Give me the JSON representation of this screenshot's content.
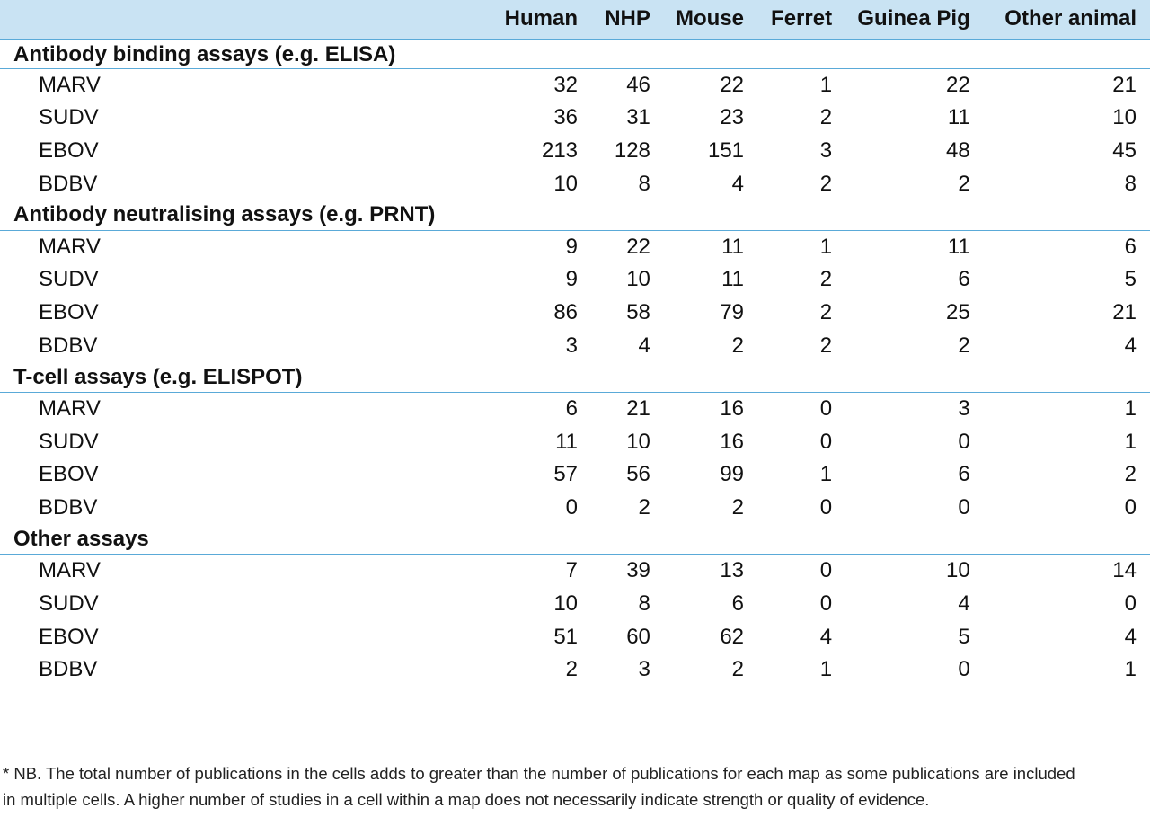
{
  "table": {
    "columns": [
      "",
      "Human",
      "NHP",
      "Mouse",
      "Ferret",
      "Guinea Pig",
      "Other animal"
    ],
    "groups": [
      {
        "title": "Antibody binding assays (e.g. ELISA)",
        "rows": [
          {
            "label": "MARV",
            "values": [
              "32",
              "46",
              "22",
              "1",
              "22",
              "21"
            ]
          },
          {
            "label": "SUDV",
            "values": [
              "36",
              "31",
              "23",
              "2",
              "11",
              "10"
            ]
          },
          {
            "label": "EBOV",
            "values": [
              "213",
              "128",
              "151",
              "3",
              "48",
              "45"
            ]
          },
          {
            "label": "BDBV",
            "values": [
              "10",
              "8",
              "4",
              "2",
              "2",
              "8"
            ]
          }
        ]
      },
      {
        "title": "Antibody neutralising assays (e.g. PRNT)",
        "rows": [
          {
            "label": "MARV",
            "values": [
              "9",
              "22",
              "11",
              "1",
              "11",
              "6"
            ]
          },
          {
            "label": "SUDV",
            "values": [
              "9",
              "10",
              "11",
              "2",
              "6",
              "5"
            ]
          },
          {
            "label": "EBOV",
            "values": [
              "86",
              "58",
              "79",
              "2",
              "25",
              "21"
            ]
          },
          {
            "label": "BDBV",
            "values": [
              "3",
              "4",
              "2",
              "2",
              "2",
              "4"
            ]
          }
        ]
      },
      {
        "title": "T-cell assays (e.g. ELISPOT)",
        "rows": [
          {
            "label": "MARV",
            "values": [
              "6",
              "21",
              "16",
              "0",
              "3",
              "1"
            ]
          },
          {
            "label": "SUDV",
            "values": [
              "11",
              "10",
              "16",
              "0",
              "0",
              "1"
            ]
          },
          {
            "label": "EBOV",
            "values": [
              "57",
              "56",
              "99",
              "1",
              "6",
              "2"
            ]
          },
          {
            "label": "BDBV",
            "values": [
              "0",
              "2",
              "2",
              "0",
              "0",
              "0"
            ]
          }
        ]
      },
      {
        "title": "Other assays",
        "rows": [
          {
            "label": "MARV",
            "values": [
              "7",
              "39",
              "13",
              "0",
              "10",
              "14"
            ]
          },
          {
            "label": "SUDV",
            "values": [
              "10",
              "8",
              "6",
              "0",
              "4",
              "0"
            ]
          },
          {
            "label": "EBOV",
            "values": [
              "51",
              "60",
              "62",
              "4",
              "5",
              "4"
            ]
          },
          {
            "label": "BDBV",
            "values": [
              "2",
              "3",
              "2",
              "1",
              "0",
              "1"
            ]
          }
        ]
      }
    ]
  },
  "footnote": "* NB. The total number of publications in the cells adds to greater than the number of publications for each map as some publications are included in multiple cells. A higher number of studies in a cell within a map does not necessarily indicate strength or quality of evidence.",
  "colors": {
    "header_background": "#c9e3f3",
    "rule": "#5aaad8"
  }
}
